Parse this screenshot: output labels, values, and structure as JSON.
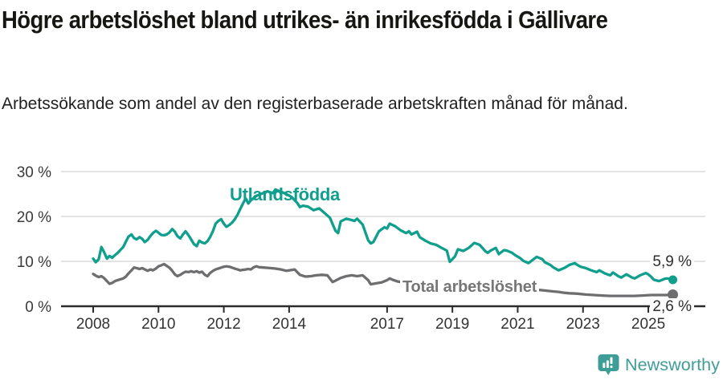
{
  "title": "Högre arbetslöshet bland utrikes- än inrikesfödda i Gällivare",
  "subtitle": "Arbetssökande som andel av den registerbaserade arbetskraften månad för månad.",
  "footer": {
    "brand": "Newsworthy",
    "logo_icon": "newsworthy-speech-bubble-bar-chart-icon"
  },
  "colors": {
    "accent_teal": "#109e8d",
    "line_gray": "#6e6e70",
    "grid": "#dadada",
    "axis": "#2b2b2b",
    "tick_label": "#3a3a3a",
    "brand_teal": "#3f9d98"
  },
  "chart_data": {
    "type": "line",
    "title": "Högre arbetslöshet bland utrikes- än inrikesfödda i Gällivare",
    "subtitle": "Arbetssökande som andel av den registerbaserade arbetskraften månad för månad.",
    "grid": "horizontal",
    "legend": "inline-labels",
    "x_axis": {
      "ticks": [
        2008,
        2010,
        2012,
        2014,
        2017,
        2019,
        2021,
        2023,
        2025
      ],
      "labels": [
        "2008",
        "2010",
        "2012",
        "2014",
        "2017",
        "2019",
        "2021",
        "2023",
        "2025"
      ],
      "range": [
        2007.9,
        2026.7
      ]
    },
    "y_axis": {
      "ticks": [
        0,
        10,
        20,
        30
      ],
      "labels": [
        "0 %",
        "10 %",
        "20 %",
        "30 %"
      ],
      "range": [
        0,
        30
      ],
      "unit": "%"
    },
    "series": [
      {
        "name": "Utlandsfödda",
        "color": "#109e8d",
        "end_label": "5,9 %",
        "end_value": 5.9,
        "points": [
          [
            2008.0,
            10.6
          ],
          [
            2008.08,
            9.8
          ],
          [
            2008.17,
            10.5
          ],
          [
            2008.25,
            13.2
          ],
          [
            2008.33,
            12.1
          ],
          [
            2008.42,
            10.6
          ],
          [
            2008.5,
            11.2
          ],
          [
            2008.58,
            10.8
          ],
          [
            2008.67,
            11.4
          ],
          [
            2008.75,
            11.9
          ],
          [
            2008.83,
            12.5
          ],
          [
            2008.92,
            13.2
          ],
          [
            2009.0,
            14.4
          ],
          [
            2009.08,
            15.5
          ],
          [
            2009.17,
            16.0
          ],
          [
            2009.25,
            15.2
          ],
          [
            2009.33,
            14.9
          ],
          [
            2009.42,
            15.4
          ],
          [
            2009.5,
            15.0
          ],
          [
            2009.58,
            14.3
          ],
          [
            2009.67,
            14.8
          ],
          [
            2009.75,
            15.6
          ],
          [
            2009.83,
            16.3
          ],
          [
            2009.92,
            16.8
          ],
          [
            2010.0,
            16.4
          ],
          [
            2010.08,
            15.9
          ],
          [
            2010.17,
            15.8
          ],
          [
            2010.25,
            16.0
          ],
          [
            2010.33,
            16.4
          ],
          [
            2010.42,
            17.2
          ],
          [
            2010.5,
            16.6
          ],
          [
            2010.58,
            15.6
          ],
          [
            2010.67,
            15.1
          ],
          [
            2010.75,
            16.0
          ],
          [
            2010.83,
            16.7
          ],
          [
            2010.92,
            15.8
          ],
          [
            2011.0,
            14.9
          ],
          [
            2011.08,
            13.9
          ],
          [
            2011.17,
            13.4
          ],
          [
            2011.25,
            14.6
          ],
          [
            2011.33,
            14.2
          ],
          [
            2011.42,
            14.0
          ],
          [
            2011.5,
            14.5
          ],
          [
            2011.58,
            15.4
          ],
          [
            2011.67,
            16.8
          ],
          [
            2011.75,
            18.4
          ],
          [
            2011.83,
            19.0
          ],
          [
            2011.92,
            19.4
          ],
          [
            2012.0,
            18.4
          ],
          [
            2012.08,
            17.7
          ],
          [
            2012.17,
            18.1
          ],
          [
            2012.25,
            18.6
          ],
          [
            2012.33,
            19.3
          ],
          [
            2012.42,
            20.4
          ],
          [
            2012.5,
            21.6
          ],
          [
            2012.58,
            22.8
          ],
          [
            2012.67,
            24.0
          ],
          [
            2012.75,
            22.9
          ],
          [
            2012.83,
            23.6
          ],
          [
            2012.92,
            24.1
          ],
          [
            2013.0,
            24.6
          ],
          [
            2013.17,
            25.1
          ],
          [
            2013.33,
            25.6
          ],
          [
            2013.5,
            25.2
          ],
          [
            2013.58,
            26.0
          ],
          [
            2013.75,
            25.5
          ],
          [
            2013.92,
            25.0
          ],
          [
            2014.08,
            24.3
          ],
          [
            2014.25,
            23.0
          ],
          [
            2014.33,
            22.1
          ],
          [
            2014.42,
            22.4
          ],
          [
            2014.58,
            22.2
          ],
          [
            2014.75,
            21.4
          ],
          [
            2014.92,
            21.8
          ],
          [
            2015.08,
            20.8
          ],
          [
            2015.25,
            19.7
          ],
          [
            2015.42,
            16.8
          ],
          [
            2015.5,
            16.3
          ],
          [
            2015.58,
            18.9
          ],
          [
            2015.75,
            19.5
          ],
          [
            2015.92,
            19.2
          ],
          [
            2016.0,
            19.0
          ],
          [
            2016.08,
            19.5
          ],
          [
            2016.25,
            18.2
          ],
          [
            2016.42,
            14.7
          ],
          [
            2016.5,
            14.0
          ],
          [
            2016.58,
            14.3
          ],
          [
            2016.75,
            16.7
          ],
          [
            2016.92,
            17.6
          ],
          [
            2017.0,
            17.3
          ],
          [
            2017.08,
            18.4
          ],
          [
            2017.25,
            17.8
          ],
          [
            2017.42,
            16.9
          ],
          [
            2017.58,
            16.3
          ],
          [
            2017.67,
            16.7
          ],
          [
            2017.75,
            16.0
          ],
          [
            2017.92,
            16.6
          ],
          [
            2018.0,
            15.4
          ],
          [
            2018.17,
            14.6
          ],
          [
            2018.33,
            14.0
          ],
          [
            2018.5,
            13.7
          ],
          [
            2018.67,
            13.0
          ],
          [
            2018.83,
            12.4
          ],
          [
            2018.92,
            9.9
          ],
          [
            2019.08,
            11.1
          ],
          [
            2019.17,
            12.7
          ],
          [
            2019.33,
            12.3
          ],
          [
            2019.5,
            13.0
          ],
          [
            2019.67,
            14.1
          ],
          [
            2019.83,
            13.7
          ],
          [
            2019.92,
            13.0
          ],
          [
            2020.0,
            12.3
          ],
          [
            2020.08,
            11.9
          ],
          [
            2020.17,
            12.4
          ],
          [
            2020.33,
            13.0
          ],
          [
            2020.42,
            11.6
          ],
          [
            2020.58,
            12.5
          ],
          [
            2020.67,
            12.4
          ],
          [
            2020.83,
            11.9
          ],
          [
            2020.92,
            11.4
          ],
          [
            2021.08,
            10.7
          ],
          [
            2021.17,
            10.1
          ],
          [
            2021.33,
            9.6
          ],
          [
            2021.42,
            10.1
          ],
          [
            2021.58,
            11.0
          ],
          [
            2021.75,
            10.5
          ],
          [
            2021.83,
            9.8
          ],
          [
            2022.0,
            9.2
          ],
          [
            2022.08,
            8.7
          ],
          [
            2022.25,
            8.0
          ],
          [
            2022.42,
            8.5
          ],
          [
            2022.58,
            9.2
          ],
          [
            2022.75,
            9.6
          ],
          [
            2022.83,
            9.2
          ],
          [
            2022.92,
            8.8
          ],
          [
            2023.08,
            8.5
          ],
          [
            2023.25,
            8.0
          ],
          [
            2023.42,
            7.6
          ],
          [
            2023.5,
            8.0
          ],
          [
            2023.67,
            7.3
          ],
          [
            2023.83,
            6.9
          ],
          [
            2023.92,
            7.5
          ],
          [
            2024.08,
            6.7
          ],
          [
            2024.17,
            6.4
          ],
          [
            2024.33,
            7.1
          ],
          [
            2024.5,
            6.4
          ],
          [
            2024.58,
            6.2
          ],
          [
            2024.75,
            6.9
          ],
          [
            2024.92,
            7.4
          ],
          [
            2025.0,
            7.1
          ],
          [
            2025.08,
            6.6
          ],
          [
            2025.17,
            5.9
          ],
          [
            2025.33,
            5.6
          ],
          [
            2025.5,
            6.1
          ],
          [
            2025.58,
            6.2
          ],
          [
            2025.75,
            5.9
          ]
        ]
      },
      {
        "name": "Total arbetslöshet",
        "color": "#6e6e70",
        "end_label": "2,6 %",
        "end_value": 2.6,
        "points": [
          [
            2008.0,
            7.2
          ],
          [
            2008.08,
            6.8
          ],
          [
            2008.17,
            6.5
          ],
          [
            2008.25,
            6.7
          ],
          [
            2008.33,
            6.3
          ],
          [
            2008.42,
            5.6
          ],
          [
            2008.5,
            5.0
          ],
          [
            2008.58,
            5.2
          ],
          [
            2008.67,
            5.6
          ],
          [
            2008.75,
            5.8
          ],
          [
            2008.83,
            6.0
          ],
          [
            2008.92,
            6.2
          ],
          [
            2009.0,
            6.6
          ],
          [
            2009.08,
            7.3
          ],
          [
            2009.17,
            8.0
          ],
          [
            2009.25,
            8.6
          ],
          [
            2009.33,
            8.5
          ],
          [
            2009.42,
            8.3
          ],
          [
            2009.5,
            8.5
          ],
          [
            2009.58,
            8.2
          ],
          [
            2009.67,
            7.9
          ],
          [
            2009.75,
            8.2
          ],
          [
            2009.83,
            8.0
          ],
          [
            2009.92,
            8.4
          ],
          [
            2010.0,
            8.9
          ],
          [
            2010.08,
            9.1
          ],
          [
            2010.17,
            9.4
          ],
          [
            2010.25,
            9.0
          ],
          [
            2010.33,
            8.6
          ],
          [
            2010.42,
            7.9
          ],
          [
            2010.5,
            7.1
          ],
          [
            2010.58,
            6.7
          ],
          [
            2010.67,
            7.0
          ],
          [
            2010.75,
            7.4
          ],
          [
            2010.83,
            7.7
          ],
          [
            2010.92,
            7.6
          ],
          [
            2011.0,
            7.8
          ],
          [
            2011.08,
            7.6
          ],
          [
            2011.17,
            7.8
          ],
          [
            2011.25,
            7.5
          ],
          [
            2011.33,
            7.7
          ],
          [
            2011.42,
            7.0
          ],
          [
            2011.5,
            6.7
          ],
          [
            2011.58,
            7.4
          ],
          [
            2011.67,
            7.9
          ],
          [
            2011.75,
            8.2
          ],
          [
            2011.83,
            8.4
          ],
          [
            2011.92,
            8.6
          ],
          [
            2012.0,
            8.8
          ],
          [
            2012.08,
            8.9
          ],
          [
            2012.17,
            8.8
          ],
          [
            2012.25,
            8.6
          ],
          [
            2012.33,
            8.4
          ],
          [
            2012.42,
            8.2
          ],
          [
            2012.5,
            8.0
          ],
          [
            2012.58,
            8.1
          ],
          [
            2012.67,
            8.2
          ],
          [
            2012.75,
            8.3
          ],
          [
            2012.83,
            8.2
          ],
          [
            2012.92,
            8.7
          ],
          [
            2013.0,
            8.9
          ],
          [
            2013.08,
            8.7
          ],
          [
            2013.25,
            8.6
          ],
          [
            2013.42,
            8.5
          ],
          [
            2013.58,
            8.4
          ],
          [
            2013.75,
            8.2
          ],
          [
            2013.92,
            7.9
          ],
          [
            2014.0,
            8.0
          ],
          [
            2014.17,
            8.2
          ],
          [
            2014.33,
            7.0
          ],
          [
            2014.5,
            6.6
          ],
          [
            2014.67,
            6.7
          ],
          [
            2014.83,
            6.9
          ],
          [
            2015.0,
            7.0
          ],
          [
            2015.17,
            6.9
          ],
          [
            2015.33,
            5.4
          ],
          [
            2015.42,
            5.7
          ],
          [
            2015.58,
            6.3
          ],
          [
            2015.75,
            6.7
          ],
          [
            2015.92,
            6.9
          ],
          [
            2016.08,
            6.7
          ],
          [
            2016.25,
            6.9
          ],
          [
            2016.42,
            5.8
          ],
          [
            2016.5,
            4.9
          ],
          [
            2016.67,
            5.1
          ],
          [
            2016.83,
            5.3
          ],
          [
            2017.0,
            5.8
          ],
          [
            2017.08,
            6.2
          ],
          [
            2017.17,
            5.9
          ],
          [
            2017.33,
            5.5
          ],
          [
            2017.58,
            5.3
          ],
          [
            2017.83,
            5.1
          ],
          [
            2018.08,
            5.0
          ],
          [
            2018.33,
            4.8
          ],
          [
            2018.58,
            4.7
          ],
          [
            2018.83,
            4.5
          ],
          [
            2019.08,
            4.4
          ],
          [
            2019.33,
            4.3
          ],
          [
            2019.58,
            4.3
          ],
          [
            2019.83,
            4.2
          ],
          [
            2020.08,
            4.4
          ],
          [
            2020.25,
            4.7
          ],
          [
            2020.42,
            4.9
          ],
          [
            2020.58,
            4.8
          ],
          [
            2020.83,
            4.6
          ],
          [
            2021.08,
            4.3
          ],
          [
            2021.33,
            4.0
          ],
          [
            2021.58,
            3.7
          ],
          [
            2021.83,
            3.5
          ],
          [
            2022.08,
            3.3
          ],
          [
            2022.25,
            3.2
          ],
          [
            2022.42,
            3.0
          ],
          [
            2022.58,
            2.9
          ],
          [
            2022.83,
            2.8
          ],
          [
            2023.08,
            2.6
          ],
          [
            2023.33,
            2.5
          ],
          [
            2023.58,
            2.4
          ],
          [
            2023.83,
            2.3
          ],
          [
            2024.08,
            2.3
          ],
          [
            2024.33,
            2.3
          ],
          [
            2024.58,
            2.3
          ],
          [
            2024.83,
            2.4
          ],
          [
            2025.08,
            2.5
          ],
          [
            2025.33,
            2.5
          ],
          [
            2025.58,
            2.5
          ],
          [
            2025.75,
            2.6
          ]
        ]
      }
    ]
  }
}
